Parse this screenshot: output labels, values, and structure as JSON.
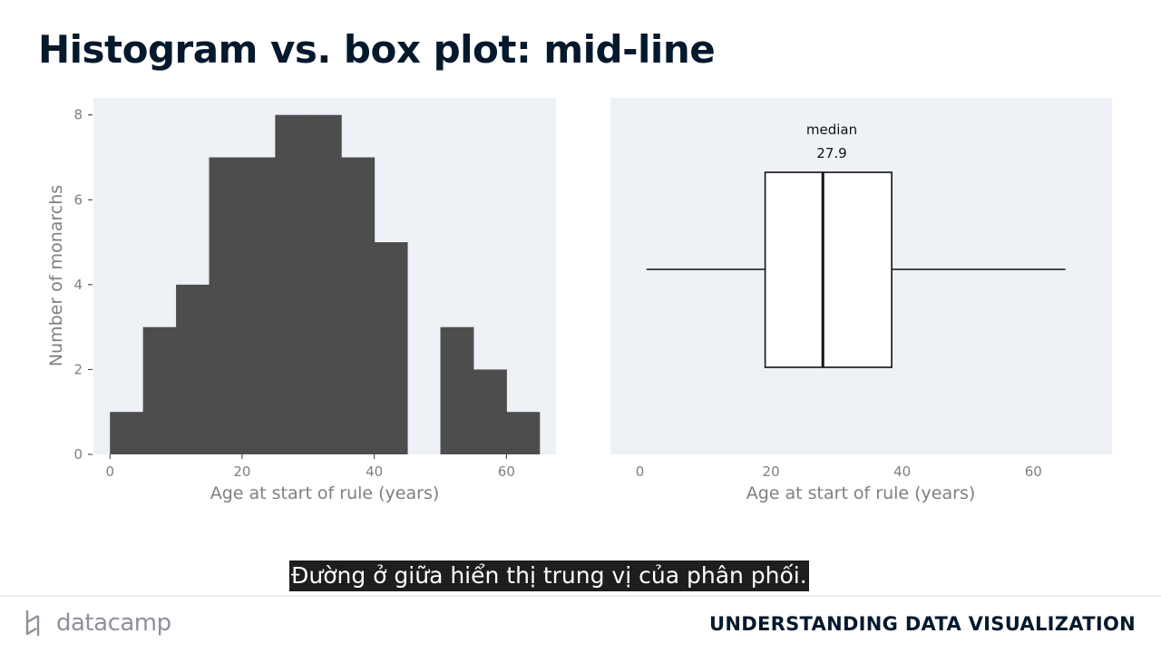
{
  "slide": {
    "title": "Histogram vs. box plot: mid-line"
  },
  "subtitle": "Đường ở giữa hiển thị trung vị của phân phối.",
  "footer": {
    "logo_text": "datacamp",
    "course_title": "UNDERSTANDING DATA VISUALIZATION"
  },
  "colors": {
    "panel_bg": "#eef2f6",
    "bar_fill": "#4d4d4d",
    "axis_text": "#7f7f7f"
  },
  "chart_data": [
    {
      "type": "bar",
      "subtype": "histogram",
      "bins": [
        {
          "x0": 0,
          "x1": 5,
          "count": 1
        },
        {
          "x0": 5,
          "x1": 10,
          "count": 3
        },
        {
          "x0": 10,
          "x1": 15,
          "count": 4
        },
        {
          "x0": 15,
          "x1": 20,
          "count": 7
        },
        {
          "x0": 20,
          "x1": 25,
          "count": 7
        },
        {
          "x0": 25,
          "x1": 30,
          "count": 8
        },
        {
          "x0": 30,
          "x1": 35,
          "count": 8
        },
        {
          "x0": 35,
          "x1": 40,
          "count": 7
        },
        {
          "x0": 40,
          "x1": 45,
          "count": 5
        },
        {
          "x0": 45,
          "x1": 50,
          "count": 0
        },
        {
          "x0": 50,
          "x1": 55,
          "count": 3
        },
        {
          "x0": 55,
          "x1": 60,
          "count": 2
        },
        {
          "x0": 60,
          "x1": 65,
          "count": 1
        }
      ],
      "xlabel": "Age at start of rule (years)",
      "ylabel": "Number of monarchs",
      "xlim": [
        -2.5,
        67.5
      ],
      "ylim": [
        0,
        8.4
      ],
      "xticks": [
        "0",
        "20",
        "40",
        "60"
      ],
      "yticks": [
        "0",
        "2",
        "4",
        "6",
        "8"
      ],
      "grid": false
    },
    {
      "type": "box",
      "min": 1,
      "q1": 19.1,
      "median": 27.9,
      "q3": 38.4,
      "max": 64.9,
      "annotation_label": "median",
      "annotation_value": "27.9",
      "xlabel": "Age at start of rule (years)",
      "xlim": [
        -4.5,
        72
      ],
      "xticks": [
        "0",
        "20",
        "40",
        "60"
      ],
      "grid": false
    }
  ]
}
